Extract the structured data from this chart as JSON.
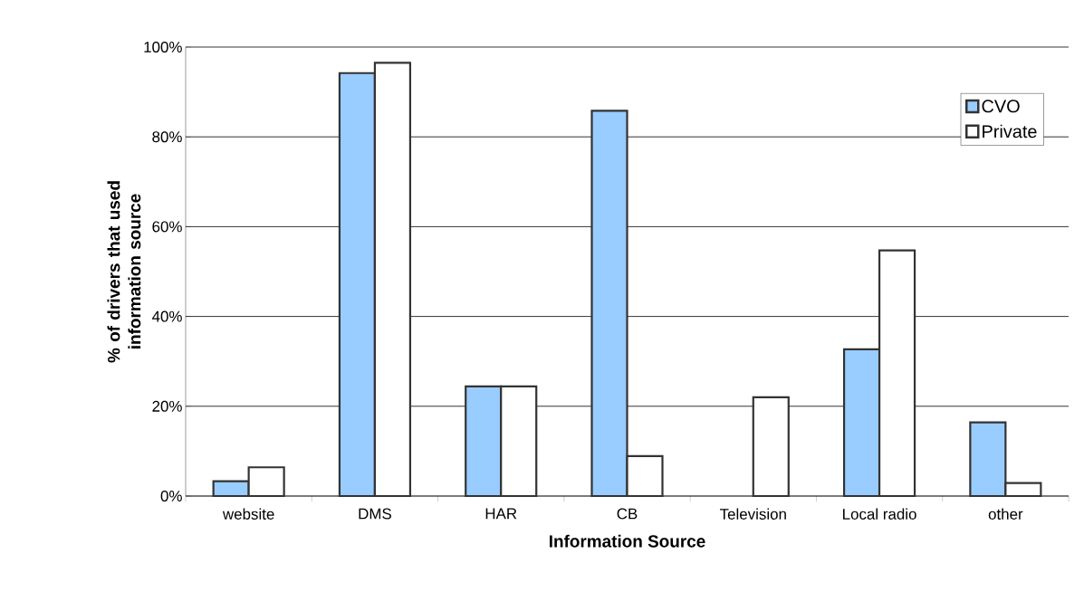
{
  "chart_data": {
    "type": "bar",
    "xlabel": "Information Source",
    "ylabel": "% of drivers that used information source",
    "categories": [
      "website",
      "DMS",
      "HAR",
      "CB",
      "Television",
      "Local radio",
      "other"
    ],
    "series": [
      {
        "name": "CVO",
        "color": "#99ccff",
        "values": [
          3.3,
          94.2,
          24.4,
          85.8,
          null,
          32.7,
          16.4
        ]
      },
      {
        "name": "Private",
        "color": "#ffffff",
        "values": [
          6.4,
          96.5,
          24.4,
          8.9,
          22.0,
          54.7,
          2.9
        ]
      }
    ],
    "ylim": [
      0,
      100
    ],
    "yticks": [
      {
        "value": 0,
        "label": "0%"
      },
      {
        "value": 20,
        "label": "20%"
      },
      {
        "value": 40,
        "label": "40%"
      },
      {
        "value": 60,
        "label": "60%"
      },
      {
        "value": 80,
        "label": "80%"
      },
      {
        "value": 100,
        "label": "100%"
      }
    ],
    "grid": "y",
    "legend": "top right"
  }
}
